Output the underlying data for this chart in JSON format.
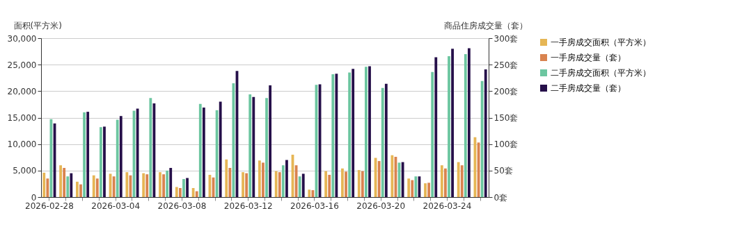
{
  "chart_data": {
    "type": "bar",
    "ylabel": "面积(平方米)",
    "y2label": "商品住房成交量（套）",
    "categories": [
      "2026-02-28",
      null,
      null,
      null,
      "2026-03-04",
      null,
      null,
      null,
      "2026-03-08",
      null,
      null,
      null,
      "2026-03-12",
      null,
      null,
      null,
      "2026-03-16",
      null,
      null,
      null,
      "2026-03-20",
      null,
      null,
      null,
      "2026-03-24",
      null,
      null
    ],
    "series": [
      {
        "name": "一手房成交面积（平方米）",
        "color": "#e6b655",
        "values": [
          4600,
          6000,
          2900,
          4100,
          4400,
          4700,
          4500,
          4700,
          1900,
          1700,
          4200,
          7100,
          4700,
          6900,
          4900,
          8000,
          1400,
          4900,
          5400,
          5100,
          7400,
          7900,
          3500,
          2600,
          6000,
          6600,
          11300
        ]
      },
      {
        "name": "一手房成交量（套）",
        "color": "#d9834f",
        "axis": "y2",
        "values": [
          35,
          55,
          24,
          35,
          39,
          41,
          43,
          43,
          17,
          11,
          37,
          55,
          45,
          65,
          47,
          60,
          13,
          42,
          48,
          49,
          68,
          76,
          32,
          27,
          54,
          60,
          103
        ]
      },
      {
        "name": "二手房成交面积（平方米）",
        "color": "#6cc6a0",
        "values": [
          14700,
          3900,
          16000,
          13200,
          14600,
          16300,
          18700,
          5000,
          3400,
          17600,
          16400,
          21500,
          19400,
          18700,
          6000,
          3900,
          21200,
          23200,
          23500,
          24600,
          20600,
          6500,
          3900,
          23600,
          26600,
          27000,
          21900
        ]
      },
      {
        "name": "二手房成交量（套）",
        "color": "#26104a",
        "axis": "y2",
        "values": [
          139,
          45,
          161,
          133,
          153,
          167,
          177,
          55,
          36,
          169,
          180,
          238,
          189,
          211,
          70,
          44,
          213,
          233,
          242,
          247,
          214,
          66,
          39,
          264,
          280,
          281,
          241
        ]
      }
    ],
    "ylim": [
      0,
      30000
    ],
    "yticks": [
      0,
      {
        "value": 5000,
        "label": "5,000"
      },
      {
        "value": 10000,
        "label": "10,000"
      },
      {
        "value": 15000,
        "label": "15,000"
      },
      {
        "value": 20000,
        "label": "20,000"
      },
      {
        "value": 25000,
        "label": "25,000"
      },
      {
        "value": 30000,
        "label": "30,000"
      }
    ],
    "y2lim": [
      0,
      300
    ],
    "y2ticks": [
      {
        "value": 0,
        "label": "0套"
      },
      {
        "value": 50,
        "label": "50套"
      },
      {
        "value": 100,
        "label": "100套"
      },
      {
        "value": 150,
        "label": "150套"
      },
      {
        "value": 200,
        "label": "200套"
      },
      {
        "value": 250,
        "label": "250套"
      },
      {
        "value": 300,
        "label": "300套"
      }
    ],
    "grid": "y",
    "legend": "right"
  }
}
